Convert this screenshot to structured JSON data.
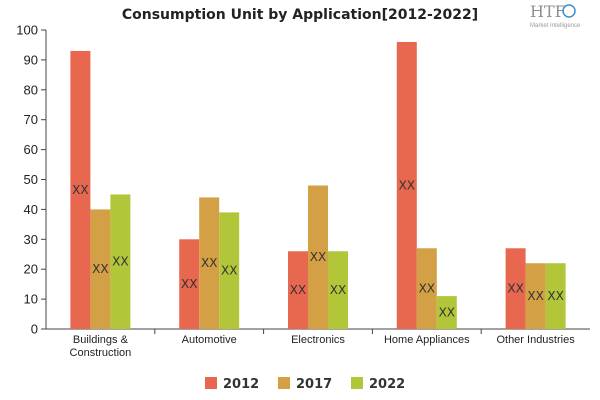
{
  "chart_data": {
    "type": "bar",
    "title": "Consumption Unit by  Application[2012-2022]",
    "categories": [
      "Buildings & Construction",
      "Automotive",
      "Electronics",
      "Home Appliances",
      "Other Industries"
    ],
    "category_lines": [
      [
        "Buildings &",
        "Construction"
      ],
      [
        "Automotive"
      ],
      [
        "Electronics"
      ],
      [
        "Home Appliances"
      ],
      [
        "Other Industries"
      ]
    ],
    "series": [
      {
        "name": "2012",
        "color": "#e8674f",
        "values": [
          93,
          30,
          26,
          96,
          27
        ],
        "labels": [
          "XX",
          "XX",
          "XX",
          "XX",
          "XX"
        ]
      },
      {
        "name": "2017",
        "color": "#d4a046",
        "values": [
          40,
          44,
          48,
          27,
          22
        ],
        "labels": [
          "XX",
          "XX",
          "XX",
          "XX",
          "XX"
        ]
      },
      {
        "name": "2022",
        "color": "#b3c63a",
        "values": [
          45,
          39,
          26,
          11,
          22
        ],
        "labels": [
          "XX",
          "XX",
          "XX",
          "XX",
          "XX"
        ]
      }
    ],
    "ylim": [
      0,
      100
    ],
    "yticks": [
      0,
      10,
      20,
      30,
      40,
      50,
      60,
      70,
      80,
      90,
      100
    ],
    "xlabel": "",
    "ylabel": "",
    "grid": false,
    "legend_position": "bottom"
  },
  "logo": {
    "mark": "HTF",
    "tagline": "Market Intelligence",
    "colors": {
      "text": "#8f8f8f",
      "accent": "#3b8fd0"
    }
  }
}
